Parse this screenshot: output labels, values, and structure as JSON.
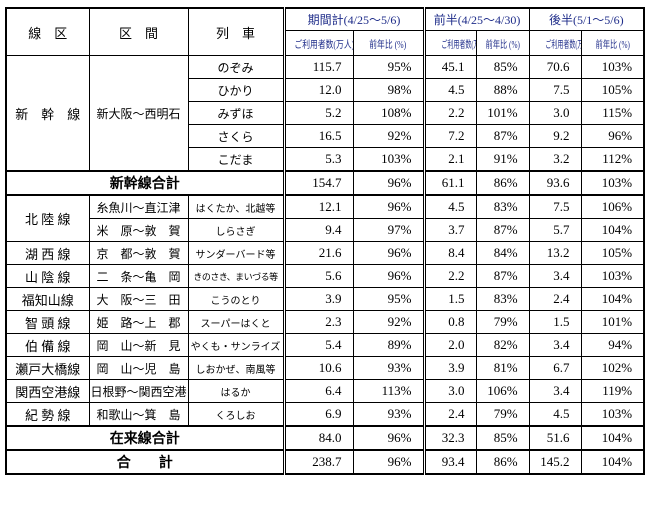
{
  "colors": {
    "header_text_blue": "#1f2d8a",
    "border": "#000000",
    "background": "#ffffff"
  },
  "table": {
    "columns": {
      "line": "線　区",
      "section": "区　間",
      "train": "列　車"
    },
    "groups": [
      {
        "label": "期間計(4/25～5/6)"
      },
      {
        "label": "前半(4/25～4/30)"
      },
      {
        "label": "後半(5/1～5/6)"
      }
    ],
    "subheaders": {
      "users": "ご利用者数(万人)",
      "yoy": "前年比 (%)"
    },
    "body": [
      {
        "type": "data",
        "line": "新　幹　線",
        "line_span": 5,
        "section": "新大阪～西明石",
        "section_span": 5,
        "train": "のぞみ",
        "values": [
          "115.7",
          "95%",
          "45.1",
          "85%",
          "70.6",
          "103%"
        ]
      },
      {
        "type": "data",
        "train": "ひかり",
        "values": [
          "12.0",
          "98%",
          "4.5",
          "88%",
          "7.5",
          "105%"
        ]
      },
      {
        "type": "data",
        "train": "みずほ",
        "values": [
          "5.2",
          "108%",
          "2.2",
          "101%",
          "3.0",
          "115%"
        ]
      },
      {
        "type": "data",
        "train": "さくら",
        "values": [
          "16.5",
          "92%",
          "7.2",
          "87%",
          "9.2",
          "96%"
        ]
      },
      {
        "type": "data",
        "train": "こだま",
        "values": [
          "5.3",
          "103%",
          "2.1",
          "91%",
          "3.2",
          "112%"
        ]
      },
      {
        "type": "total",
        "label": "新幹線合計",
        "values": [
          "154.7",
          "96%",
          "61.1",
          "86%",
          "93.6",
          "103%"
        ]
      },
      {
        "type": "data",
        "line": "北 陸 線",
        "line_span": 2,
        "section": "糸魚川～直江津",
        "section_span": 1,
        "train": "はくたか、北越等",
        "small": true,
        "values": [
          "12.1",
          "96%",
          "4.5",
          "83%",
          "7.5",
          "106%"
        ]
      },
      {
        "type": "data",
        "section": "米　原～敦　賀",
        "section_span": 1,
        "train": "しらさぎ",
        "small": true,
        "values": [
          "9.4",
          "97%",
          "3.7",
          "87%",
          "5.7",
          "104%"
        ]
      },
      {
        "type": "data",
        "line": "湖 西 線",
        "line_span": 1,
        "section": "京　都～敦　賀",
        "section_span": 1,
        "train": "サンダーバード等",
        "small": true,
        "values": [
          "21.6",
          "96%",
          "8.4",
          "84%",
          "13.2",
          "105%"
        ]
      },
      {
        "type": "data",
        "line": "山 陰 線",
        "line_span": 1,
        "section": "二　条～亀　岡",
        "section_span": 1,
        "train": "きのさき、まいづる等",
        "small": true,
        "xs": true,
        "values": [
          "5.6",
          "96%",
          "2.2",
          "87%",
          "3.4",
          "103%"
        ]
      },
      {
        "type": "data",
        "line": "福知山線",
        "line_span": 1,
        "section": "大　阪～三　田",
        "section_span": 1,
        "train": "こうのとり",
        "small": true,
        "values": [
          "3.9",
          "95%",
          "1.5",
          "83%",
          "2.4",
          "104%"
        ]
      },
      {
        "type": "data",
        "line": "智 頭 線",
        "line_span": 1,
        "section": "姫　路～上　郡",
        "section_span": 1,
        "train": "スーパーはくと",
        "small": true,
        "values": [
          "2.3",
          "92%",
          "0.8",
          "79%",
          "1.5",
          "101%"
        ]
      },
      {
        "type": "data",
        "line": "伯 備 線",
        "line_span": 1,
        "section": "岡　山～新　見",
        "section_span": 1,
        "train": "やくも・サンライズ",
        "small": true,
        "values": [
          "5.4",
          "89%",
          "2.0",
          "82%",
          "3.4",
          "94%"
        ]
      },
      {
        "type": "data",
        "line": "瀬戸大橋線",
        "line_span": 1,
        "section": "岡　山～児　島",
        "section_span": 1,
        "train": "しおかぜ、南風等",
        "small": true,
        "values": [
          "10.6",
          "93%",
          "3.9",
          "81%",
          "6.7",
          "102%"
        ]
      },
      {
        "type": "data",
        "line": "関西空港線",
        "line_span": 1,
        "section": "日根野～関西空港",
        "section_span": 1,
        "train": "はるか",
        "small": true,
        "values": [
          "6.4",
          "113%",
          "3.0",
          "106%",
          "3.4",
          "119%"
        ]
      },
      {
        "type": "data",
        "line": "紀 勢 線",
        "line_span": 1,
        "section": "和歌山～箕　島",
        "section_span": 1,
        "train": "くろしお",
        "small": true,
        "values": [
          "6.9",
          "93%",
          "2.4",
          "79%",
          "4.5",
          "103%"
        ]
      },
      {
        "type": "total",
        "label": "在来線合計",
        "values": [
          "84.0",
          "96%",
          "32.3",
          "85%",
          "51.6",
          "104%"
        ]
      },
      {
        "type": "total",
        "label": "合　　計",
        "values": [
          "238.7",
          "96%",
          "93.4",
          "86%",
          "145.2",
          "104%"
        ]
      }
    ]
  }
}
